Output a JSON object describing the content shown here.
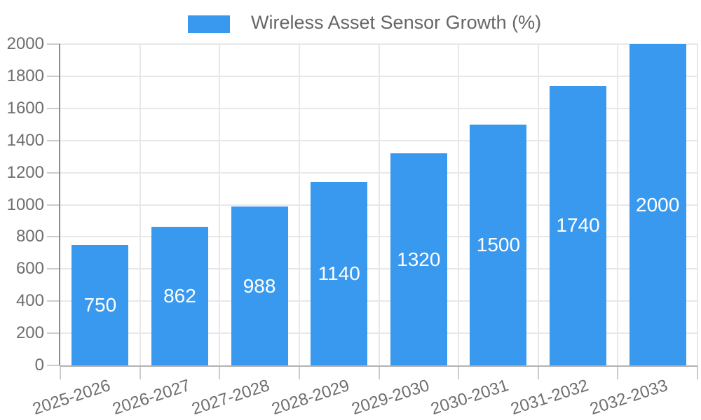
{
  "chart_data": {
    "type": "bar",
    "title": "Wireless Asset Sensor Growth (%)",
    "categories": [
      "2025-2026",
      "2026-2027",
      "2027-2028",
      "2028-2029",
      "2029-2030",
      "2030-2031",
      "2031-2032",
      "2032-2033"
    ],
    "values": [
      750,
      862,
      988,
      1140,
      1320,
      1500,
      1740,
      2000
    ],
    "xlabel": "",
    "ylabel": "",
    "ylim": [
      0,
      2000
    ],
    "ytick_step": 200,
    "yticks": [
      0,
      200,
      400,
      600,
      800,
      1000,
      1200,
      1400,
      1600,
      1800,
      2000
    ],
    "grid": true,
    "legend_position": "top",
    "x_label_rotation_deg": -18,
    "colors": {
      "bar": "#3999ee",
      "value_label": "#ffffff",
      "axis_label": "#6e6e6e",
      "legend_text": "#666666",
      "gridline": "#e8e8e8",
      "tick": "#cccccc",
      "y_axis_line": "#8c8c8c",
      "x_axis_line": "#b3b3b3",
      "background": "#ffffff"
    }
  }
}
